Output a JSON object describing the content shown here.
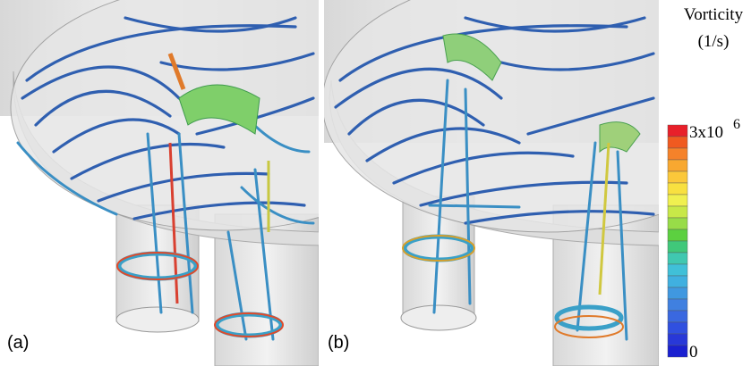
{
  "panels": [
    {
      "label": "(a)"
    },
    {
      "label": "(b)"
    }
  ],
  "colorbar": {
    "title": "Vorticity",
    "unit": "(1/s)",
    "max_label": {
      "base": "3x10",
      "exponent": "6"
    },
    "min_label": "0"
  }
}
